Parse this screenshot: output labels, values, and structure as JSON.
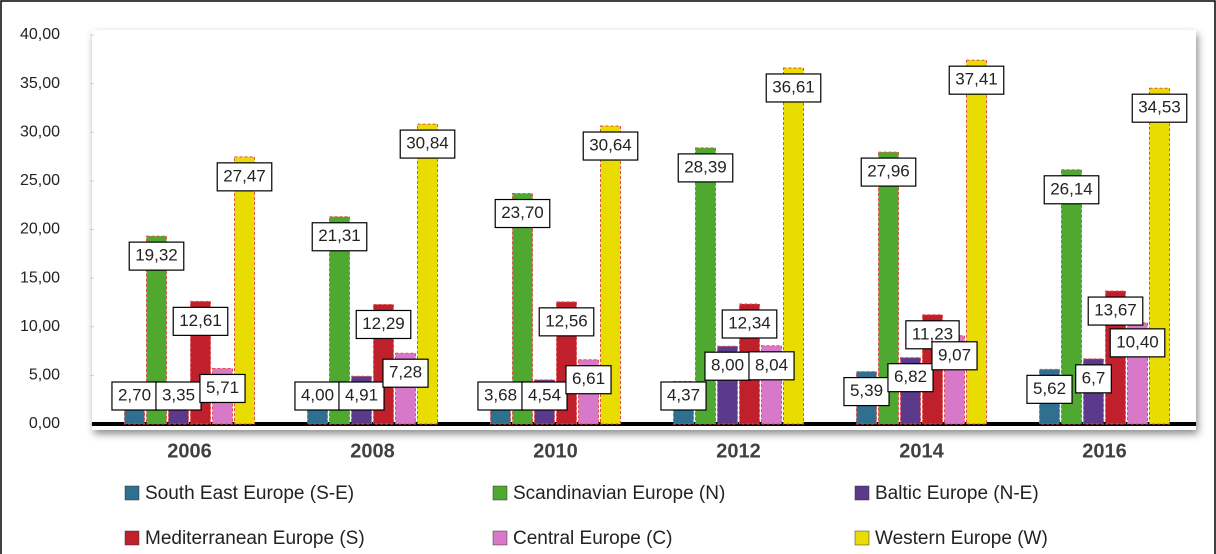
{
  "chart_data": {
    "type": "bar",
    "categories": [
      "2006",
      "2008",
      "2010",
      "2012",
      "2014",
      "2016"
    ],
    "series": [
      {
        "name": "South East Europe (S-E)",
        "color": "#2f6f8f",
        "values": [
          2.7,
          4.0,
          3.68,
          4.37,
          5.39,
          5.62
        ],
        "value_labels": [
          "2,70",
          "4,00",
          "3,68",
          "4,37",
          "5,39",
          "5,62"
        ]
      },
      {
        "name": "Scandinavian Europe (N)",
        "color": "#4fa830",
        "values": [
          19.32,
          21.31,
          23.7,
          28.39,
          27.96,
          26.14
        ],
        "value_labels": [
          "19,32",
          "21,31",
          "23,70",
          "28,39",
          "27,96",
          "26,14"
        ]
      },
      {
        "name": "Baltic Europe (N-E)",
        "color": "#5b3a8c",
        "values": [
          3.35,
          4.91,
          4.54,
          8.0,
          6.82,
          6.7
        ],
        "value_labels": [
          "3,35",
          "4,91",
          "4,54",
          "8,00",
          "6,82",
          "6,7"
        ]
      },
      {
        "name": "Mediterranean Europe (S)",
        "color": "#c0202b",
        "values": [
          12.61,
          12.29,
          12.56,
          12.34,
          11.23,
          13.67
        ],
        "value_labels": [
          "12,61",
          "12,29",
          "12,56",
          "12,34",
          "11,23",
          "13,67"
        ]
      },
      {
        "name": "Central Europe (C)",
        "color": "#d878c8",
        "values": [
          5.71,
          7.28,
          6.61,
          8.04,
          9.07,
          10.4
        ],
        "value_labels": [
          "5,71",
          "7,28",
          "6,61",
          "8,04",
          "9,07",
          "10,40"
        ]
      },
      {
        "name": "Western Europe (W)",
        "color": "#e8dc00",
        "values": [
          27.47,
          30.84,
          30.64,
          36.61,
          37.41,
          34.53
        ],
        "value_labels": [
          "27,47",
          "30,84",
          "30,64",
          "36,61",
          "37,41",
          "34,53"
        ]
      }
    ],
    "ylim": [
      0,
      40
    ],
    "yticks": [
      {
        "value": 0,
        "label": "0,00"
      },
      {
        "value": 5,
        "label": "5,00"
      },
      {
        "value": 10,
        "label": "10,00"
      },
      {
        "value": 15,
        "label": "15,00"
      },
      {
        "value": 20,
        "label": "20,00"
      },
      {
        "value": 25,
        "label": "25,00"
      },
      {
        "value": 30,
        "label": "30,00"
      },
      {
        "value": 35,
        "label": "35,00"
      },
      {
        "value": 40,
        "label": "40,00"
      }
    ],
    "legend": "bottom"
  }
}
